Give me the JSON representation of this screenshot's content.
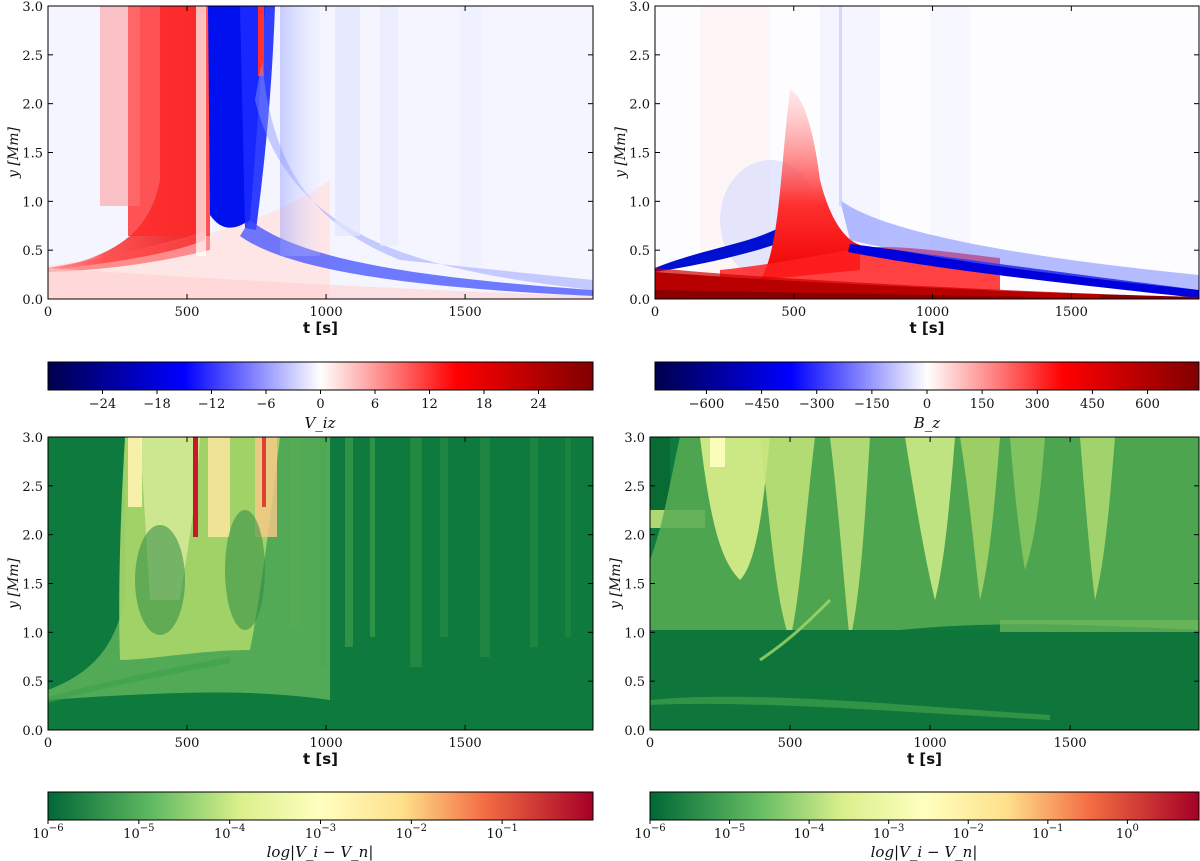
{
  "chart_data": [
    {
      "type": "heatmap",
      "id": "viz",
      "xlabel": "t [s]",
      "ylabel": "y [Mm]",
      "xlim": [
        0,
        1960
      ],
      "ylim": [
        0,
        3.0
      ],
      "xticks": [
        "0",
        "500",
        "1000",
        "1500"
      ],
      "xtick_values": [
        0,
        500,
        1000,
        1500
      ],
      "yticks": [
        "0.0",
        "0.5",
        "1.0",
        "1.5",
        "2.0",
        "2.5",
        "3.0"
      ],
      "ytick_values": [
        0,
        0.5,
        1.0,
        1.5,
        2.0,
        2.5,
        3.0
      ],
      "colormap": "seismic",
      "colorbar": {
        "label": "V_iz",
        "range": [
          -30,
          30
        ],
        "ticks": [
          "−24",
          "−18",
          "−12",
          "−6",
          "0",
          "6",
          "12",
          "18",
          "24"
        ],
        "tick_values": [
          -24,
          -18,
          -12,
          -6,
          0,
          6,
          12,
          18,
          24
        ]
      }
    },
    {
      "type": "heatmap",
      "id": "bz",
      "xlabel": "t [s]",
      "ylabel": "y [Mm]",
      "xlim": [
        0,
        1960
      ],
      "ylim": [
        0,
        3.0
      ],
      "xticks": [
        "0",
        "500",
        "1000",
        "1500"
      ],
      "xtick_values": [
        0,
        500,
        1000,
        1500
      ],
      "yticks": [
        "0.0",
        "0.5",
        "1.0",
        "1.5",
        "2.0",
        "2.5",
        "3.0"
      ],
      "ytick_values": [
        0,
        0.5,
        1.0,
        1.5,
        2.0,
        2.5,
        3.0
      ],
      "colormap": "seismic",
      "colorbar": {
        "label": "B_z",
        "range": [
          -740,
          740
        ],
        "ticks": [
          "−600",
          "−450",
          "−300",
          "−150",
          "0",
          "150",
          "300",
          "450",
          "600"
        ],
        "tick_values": [
          -600,
          -450,
          -300,
          -150,
          0,
          150,
          300,
          450,
          600
        ]
      }
    },
    {
      "type": "heatmap",
      "id": "dv1",
      "xlabel": "t [s]",
      "ylabel": "y [Mm]",
      "xlim": [
        0,
        1960
      ],
      "ylim": [
        0,
        3.0
      ],
      "xticks": [
        "0",
        "500",
        "1000",
        "1500"
      ],
      "xtick_values": [
        0,
        500,
        1000,
        1500
      ],
      "yticks": [
        "0.0",
        "0.5",
        "1.0",
        "1.5",
        "2.0",
        "2.5",
        "3.0"
      ],
      "ytick_values": [
        0,
        0.5,
        1.0,
        1.5,
        2.0,
        2.5,
        3.0
      ],
      "colormap": "RdYlGn_r",
      "colorbar": {
        "label": "log|V_i − V_n|",
        "range_log10": [
          -6,
          0
        ],
        "ticks": [
          {
            "base": "10",
            "exp": "−6"
          },
          {
            "base": "10",
            "exp": "−5"
          },
          {
            "base": "10",
            "exp": "−4"
          },
          {
            "base": "10",
            "exp": "−3"
          },
          {
            "base": "10",
            "exp": "−2"
          },
          {
            "base": "10",
            "exp": "−1"
          }
        ],
        "tick_values_log10": [
          -6,
          -5,
          -4,
          -3,
          -2,
          -1
        ]
      }
    },
    {
      "type": "heatmap",
      "id": "dv2",
      "xlabel": "t [s]",
      "ylabel": "y [Mm]",
      "xlim": [
        0,
        1960
      ],
      "ylim": [
        0,
        3.0
      ],
      "xticks": [
        "0",
        "500",
        "1000",
        "1500"
      ],
      "xtick_values": [
        0,
        500,
        1000,
        1500
      ],
      "yticks": [
        "0.0",
        "0.5",
        "1.0",
        "1.5",
        "2.0",
        "2.5",
        "3.0"
      ],
      "ytick_values": [
        0,
        0.5,
        1.0,
        1.5,
        2.0,
        2.5,
        3.0
      ],
      "colormap": "RdYlGn_r",
      "colorbar": {
        "label": "log|V_i − V_n|",
        "range_log10": [
          -6,
          0.9
        ],
        "ticks": [
          {
            "base": "10",
            "exp": "−6"
          },
          {
            "base": "10",
            "exp": "−5"
          },
          {
            "base": "10",
            "exp": "−4"
          },
          {
            "base": "10",
            "exp": "−3"
          },
          {
            "base": "10",
            "exp": "−2"
          },
          {
            "base": "10",
            "exp": "−1"
          },
          {
            "base": "10",
            "exp": "0"
          }
        ],
        "tick_values_log10": [
          -6,
          -5,
          -4,
          -3,
          -2,
          -1,
          0
        ]
      }
    }
  ]
}
